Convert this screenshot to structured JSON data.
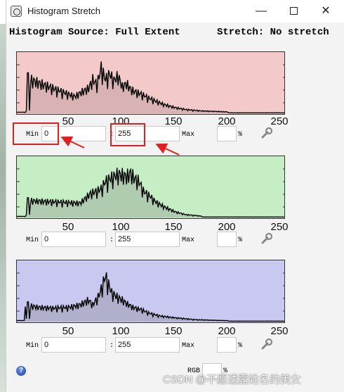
{
  "window": {
    "title": "Histogram Stretch",
    "minimize": "—",
    "close": "✕"
  },
  "header": {
    "source": "Histogram Source: Full Extent",
    "stretch": "Stretch: No stretch"
  },
  "axis_ticks": [
    "50",
    "100",
    "150",
    "200",
    "250"
  ],
  "panels": [
    {
      "name": "red",
      "fill": "#f3c9c9",
      "area": "#d9b3b3",
      "min_label": "Min",
      "min_value": "0",
      "sep": ":",
      "max_value": "255",
      "max_label": "Max",
      "pct_label": "%",
      "chart_data": {
        "type": "area",
        "xlim": [
          0,
          255
        ],
        "peaks": [
          [
            10,
            0.72
          ],
          [
            55,
            0.35
          ],
          [
            62,
            0.45
          ],
          [
            68,
            0.52
          ],
          [
            72,
            0.7
          ],
          [
            76,
            0.6
          ],
          [
            80,
            0.95
          ],
          [
            84,
            0.7
          ],
          [
            88,
            0.82
          ],
          [
            92,
            0.68
          ],
          [
            96,
            0.78
          ],
          [
            100,
            0.55
          ],
          [
            104,
            0.62
          ],
          [
            108,
            0.5
          ],
          [
            112,
            0.45
          ],
          [
            118,
            0.4
          ],
          [
            125,
            0.32
          ],
          [
            132,
            0.25
          ],
          [
            140,
            0.18
          ],
          [
            150,
            0.12
          ],
          [
            160,
            0.08
          ],
          [
            175,
            0.05
          ],
          [
            200,
            0.03
          ]
        ]
      }
    },
    {
      "name": "green",
      "fill": "#c5eec5",
      "area": "#b0ccb0",
      "min_label": "Min",
      "min_value": "0",
      "sep": ":",
      "max_value": "255",
      "max_label": "Max",
      "pct_label": "%",
      "chart_data": {
        "type": "area",
        "xlim": [
          0,
          255
        ],
        "peaks": [
          [
            12,
            0.35
          ],
          [
            60,
            0.3
          ],
          [
            70,
            0.5
          ],
          [
            76,
            0.55
          ],
          [
            80,
            0.6
          ],
          [
            84,
            0.75
          ],
          [
            88,
            0.8
          ],
          [
            92,
            0.85
          ],
          [
            96,
            0.9
          ],
          [
            100,
            0.88
          ],
          [
            104,
            0.85
          ],
          [
            108,
            0.92
          ],
          [
            112,
            0.8
          ],
          [
            116,
            0.75
          ],
          [
            120,
            0.55
          ],
          [
            126,
            0.45
          ],
          [
            132,
            0.32
          ],
          [
            140,
            0.22
          ],
          [
            150,
            0.12
          ],
          [
            160,
            0.06
          ],
          [
            175,
            0.03
          ]
        ]
      }
    },
    {
      "name": "blue",
      "fill": "#c8c8f0",
      "area": "#b0b0cc",
      "min_label": "Min",
      "min_value": "0",
      "sep": ":",
      "max_value": "255",
      "max_label": "Max",
      "pct_label": "%",
      "chart_data": {
        "type": "area",
        "xlim": [
          0,
          255
        ],
        "peaks": [
          [
            8,
            0.35
          ],
          [
            20,
            0.3
          ],
          [
            35,
            0.28
          ],
          [
            50,
            0.3
          ],
          [
            60,
            0.35
          ],
          [
            68,
            0.45
          ],
          [
            72,
            0.35
          ],
          [
            78,
            0.55
          ],
          [
            84,
            0.95
          ],
          [
            90,
            0.6
          ],
          [
            96,
            0.5
          ],
          [
            100,
            0.45
          ],
          [
            104,
            0.38
          ],
          [
            110,
            0.3
          ],
          [
            118,
            0.25
          ],
          [
            125,
            0.18
          ],
          [
            135,
            0.12
          ],
          [
            150,
            0.08
          ],
          [
            170,
            0.04
          ],
          [
            200,
            0.02
          ]
        ]
      }
    }
  ],
  "footer": {
    "help": "?",
    "rgb_label": "RGB",
    "rgb_pct": "%"
  },
  "watermark": "CSDN @不愿透露姓名的美女"
}
